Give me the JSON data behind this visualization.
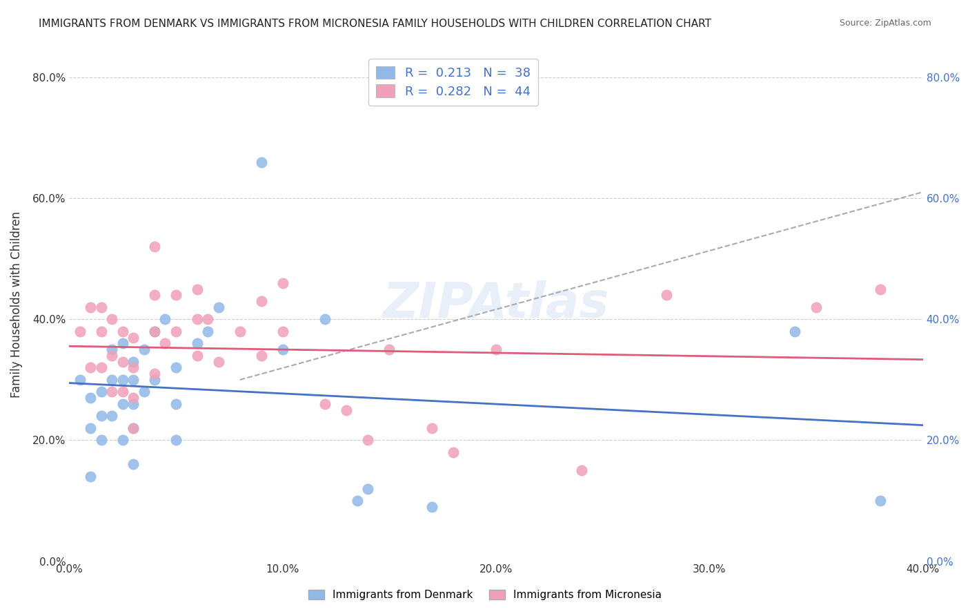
{
  "title": "IMMIGRANTS FROM DENMARK VS IMMIGRANTS FROM MICRONESIA FAMILY HOUSEHOLDS WITH CHILDREN CORRELATION CHART",
  "source": "Source: ZipAtlas.com",
  "ylabel": "Family Households with Children",
  "legend_denmark": "Immigrants from Denmark",
  "legend_micronesia": "Immigrants from Micronesia",
  "R_denmark": 0.213,
  "N_denmark": 38,
  "R_micronesia": 0.282,
  "N_micronesia": 44,
  "color_denmark": "#91b9e8",
  "color_micronesia": "#f0a0b8",
  "trendline_denmark": "#4472c4",
  "trendline_micronesia": "#e05a7a",
  "xlim": [
    0.0,
    0.4
  ],
  "ylim": [
    0.0,
    0.85
  ],
  "xticks": [
    0.0,
    0.1,
    0.2,
    0.3,
    0.4
  ],
  "yticks": [
    0.0,
    0.2,
    0.4,
    0.6,
    0.8
  ],
  "xtick_labels": [
    "0.0%",
    "10.0%",
    "20.0%",
    "30.0%",
    "40.0%"
  ],
  "ytick_labels": [
    "0.0%",
    "20.0%",
    "40.0%",
    "60.0%",
    "80.0%"
  ],
  "watermark": "ZIPAtlas",
  "denmark_x": [
    0.005,
    0.01,
    0.01,
    0.01,
    0.015,
    0.015,
    0.015,
    0.02,
    0.02,
    0.02,
    0.025,
    0.025,
    0.025,
    0.025,
    0.03,
    0.03,
    0.03,
    0.03,
    0.03,
    0.035,
    0.035,
    0.04,
    0.04,
    0.045,
    0.05,
    0.05,
    0.05,
    0.06,
    0.065,
    0.07,
    0.09,
    0.1,
    0.12,
    0.135,
    0.14,
    0.17,
    0.34,
    0.38
  ],
  "denmark_y": [
    0.3,
    0.27,
    0.22,
    0.14,
    0.28,
    0.24,
    0.2,
    0.35,
    0.3,
    0.24,
    0.36,
    0.3,
    0.26,
    0.2,
    0.33,
    0.3,
    0.26,
    0.22,
    0.16,
    0.35,
    0.28,
    0.38,
    0.3,
    0.4,
    0.32,
    0.26,
    0.2,
    0.36,
    0.38,
    0.42,
    0.66,
    0.35,
    0.4,
    0.1,
    0.12,
    0.09,
    0.38,
    0.1
  ],
  "micronesia_x": [
    0.005,
    0.01,
    0.01,
    0.015,
    0.015,
    0.015,
    0.02,
    0.02,
    0.02,
    0.025,
    0.025,
    0.025,
    0.03,
    0.03,
    0.03,
    0.03,
    0.04,
    0.04,
    0.04,
    0.04,
    0.045,
    0.05,
    0.05,
    0.06,
    0.06,
    0.06,
    0.065,
    0.07,
    0.08,
    0.09,
    0.09,
    0.1,
    0.1,
    0.12,
    0.13,
    0.14,
    0.15,
    0.17,
    0.18,
    0.2,
    0.24,
    0.28,
    0.35,
    0.38
  ],
  "micronesia_y": [
    0.38,
    0.42,
    0.32,
    0.42,
    0.38,
    0.32,
    0.4,
    0.34,
    0.28,
    0.38,
    0.33,
    0.28,
    0.37,
    0.32,
    0.27,
    0.22,
    0.52,
    0.44,
    0.38,
    0.31,
    0.36,
    0.44,
    0.38,
    0.45,
    0.4,
    0.34,
    0.4,
    0.33,
    0.38,
    0.43,
    0.34,
    0.46,
    0.38,
    0.26,
    0.25,
    0.2,
    0.35,
    0.22,
    0.18,
    0.35,
    0.15,
    0.44,
    0.42,
    0.45
  ]
}
